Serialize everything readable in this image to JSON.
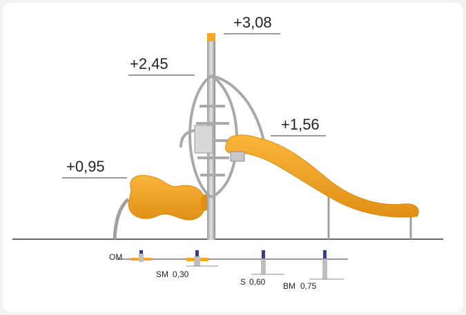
{
  "heights": {
    "h308": "+3,08",
    "h245": "+2,45",
    "h156": "+1,56",
    "h095": "+0,95"
  },
  "foundations": {
    "om": {
      "code": "OM",
      "depth": ""
    },
    "sm": {
      "code": "SM",
      "depth": "0,30"
    },
    "s": {
      "code": "S",
      "depth": "0,60"
    },
    "bm": {
      "code": "BM",
      "depth": "0,75"
    }
  },
  "colors": {
    "orange": "#f5a623",
    "orange_dark": "#d98a12",
    "steel": "#c9c9c9",
    "steel_dark": "#8d8d8d",
    "line": "#333333",
    "anchor_blue": "#3b3b8f"
  }
}
